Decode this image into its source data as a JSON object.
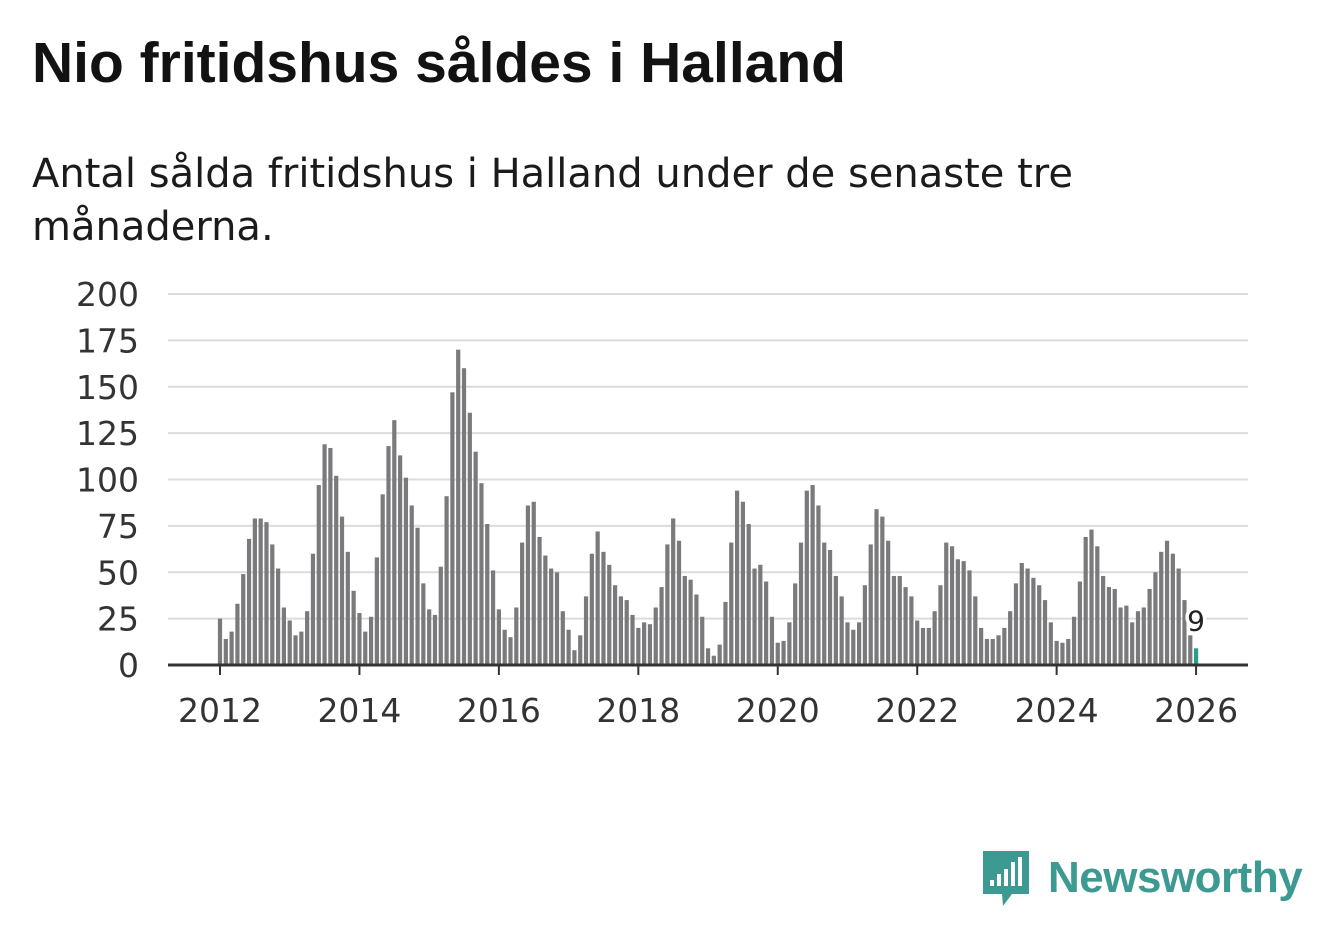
{
  "title": "Nio fritidshus såldes i Halland",
  "subtitle": "Antal sålda fritidshus i Halland under de senaste tre månaderna.",
  "brand": {
    "name": "Newsworthy",
    "icon": "newsworthy-logo-icon",
    "color": "#3d9a92"
  },
  "chart_data": {
    "type": "bar",
    "x_unit": "month",
    "x_start": "2012-01",
    "ylim": [
      0,
      200
    ],
    "yticks": [
      0,
      25,
      50,
      75,
      100,
      125,
      150,
      175,
      200
    ],
    "xticks": [
      "2012",
      "2014",
      "2016",
      "2018",
      "2020",
      "2022",
      "2024",
      "2026"
    ],
    "grid": true,
    "bar_color": "#7a797c",
    "highlight_color": "#2a9d8f",
    "highlight_label": "9",
    "values": [
      25,
      14,
      18,
      33,
      49,
      68,
      79,
      79,
      77,
      65,
      52,
      31,
      24,
      16,
      18,
      29,
      60,
      97,
      119,
      117,
      102,
      80,
      61,
      40,
      28,
      18,
      26,
      58,
      92,
      118,
      132,
      113,
      101,
      86,
      74,
      44,
      30,
      27,
      53,
      91,
      147,
      170,
      160,
      136,
      115,
      98,
      76,
      51,
      30,
      19,
      15,
      31,
      66,
      86,
      88,
      69,
      59,
      52,
      50,
      29,
      19,
      8,
      16,
      37,
      60,
      72,
      61,
      54,
      43,
      37,
      35,
      27,
      20,
      23,
      22,
      31,
      42,
      65,
      79,
      67,
      48,
      46,
      38,
      26,
      9,
      5,
      11,
      34,
      66,
      94,
      88,
      76,
      52,
      54,
      45,
      26,
      12,
      13,
      23,
      44,
      66,
      94,
      97,
      86,
      66,
      62,
      48,
      37,
      23,
      19,
      23,
      43,
      65,
      84,
      80,
      67,
      48,
      48,
      42,
      37,
      24,
      20,
      20,
      29,
      43,
      66,
      64,
      57,
      56,
      51,
      37,
      20,
      14,
      14,
      16,
      20,
      29,
      44,
      55,
      52,
      47,
      43,
      35,
      23,
      13,
      12,
      14,
      26,
      45,
      69,
      73,
      64,
      48,
      42,
      41,
      31,
      32,
      23,
      29,
      31,
      41,
      50,
      61,
      67,
      60,
      52,
      35,
      16,
      9
    ]
  }
}
